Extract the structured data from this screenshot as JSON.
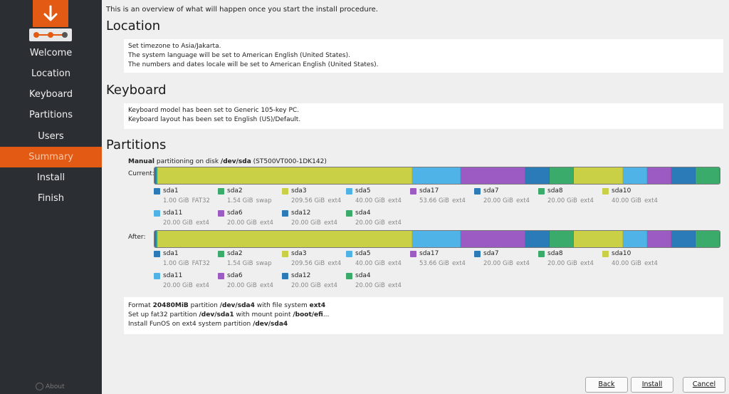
{
  "sidebar": {
    "logo_icon": "download-arrow-icon",
    "steps_icon": "progress-steps-icon",
    "accent": "#e35a14",
    "items": [
      {
        "label": "Welcome",
        "active": false
      },
      {
        "label": "Location",
        "active": false
      },
      {
        "label": "Keyboard",
        "active": false
      },
      {
        "label": "Partitions",
        "active": false
      },
      {
        "label": "Users",
        "active": false
      },
      {
        "label": "Summary",
        "active": true
      },
      {
        "label": "Install",
        "active": false
      },
      {
        "label": "Finish",
        "active": false
      }
    ],
    "about_label": "About"
  },
  "main": {
    "intro": "This is an overview of what will happen once you start the install procedure.",
    "location": {
      "heading": "Location",
      "lines": [
        "Set timezone to Asia/Jakarta.",
        "The system language will be set to American English (United States).",
        "The numbers and dates locale will be set to American English (United States)."
      ]
    },
    "keyboard": {
      "heading": "Keyboard",
      "lines": [
        "Keyboard model has been set to Generic 105-key PC.",
        "Keyboard layout has been set to English (US)/Default."
      ]
    },
    "partitions": {
      "heading": "Partitions",
      "disk_prefix": "Manual",
      "disk_mid": " partitioning on disk ",
      "disk_name": "/dev/sda",
      "disk_model": " (ST500VT000-1DK142)",
      "current_label": "Current:",
      "after_label": "After:",
      "partitions": [
        {
          "name": "sda1",
          "size": "1.00 GiB",
          "fs": "FAT32",
          "color": "#2b7bb9",
          "gib": 1
        },
        {
          "name": "sda2",
          "size": "1.54 GiB",
          "fs": "swap",
          "color": "#3aab6a",
          "gib": 1.54
        },
        {
          "name": "sda3",
          "size": "209.56 GiB",
          "fs": "ext4",
          "color": "#c9d046",
          "gib": 209.56
        },
        {
          "name": "sda5",
          "size": "40.00 GiB",
          "fs": "ext4",
          "color": "#4fb3e8",
          "gib": 40
        },
        {
          "name": "sda17",
          "size": "53.66 GiB",
          "fs": "ext4",
          "color": "#9b5bc2",
          "gib": 53.66
        },
        {
          "name": "sda7",
          "size": "20.00 GiB",
          "fs": "ext4",
          "color": "#2b7bb9",
          "gib": 20
        },
        {
          "name": "sda8",
          "size": "20.00 GiB",
          "fs": "ext4",
          "color": "#3aab6a",
          "gib": 20
        },
        {
          "name": "sda10",
          "size": "40.00 GiB",
          "fs": "ext4",
          "color": "#c9d046",
          "gib": 40
        },
        {
          "name": "sda11",
          "size": "20.00 GiB",
          "fs": "ext4",
          "color": "#4fb3e8",
          "gib": 20
        },
        {
          "name": "sda6",
          "size": "20.00 GiB",
          "fs": "ext4",
          "color": "#9b5bc2",
          "gib": 20
        },
        {
          "name": "sda12",
          "size": "20.00 GiB",
          "fs": "ext4",
          "color": "#2b7bb9",
          "gib": 20
        },
        {
          "name": "sda4",
          "size": "20.00 GiB",
          "fs": "ext4",
          "color": "#3aab6a",
          "gib": 20
        }
      ],
      "operations": [
        {
          "parts": [
            {
              "t": "Format "
            },
            {
              "t": "20480MiB",
              "b": true
            },
            {
              "t": " partition "
            },
            {
              "t": "/dev/sda4",
              "b": true
            },
            {
              "t": " with file system "
            },
            {
              "t": "ext4",
              "b": true
            }
          ]
        },
        {
          "parts": [
            {
              "t": "Set up fat32 partition "
            },
            {
              "t": "/dev/sda1",
              "b": true
            },
            {
              "t": " with mount point "
            },
            {
              "t": "/boot/efi",
              "b": true
            },
            {
              "t": "..."
            }
          ]
        },
        {
          "parts": [
            {
              "t": "Install FunOS on ext4 system partition "
            },
            {
              "t": "/dev/sda4",
              "b": true
            }
          ]
        }
      ]
    }
  },
  "buttons": {
    "back": "Back",
    "install": "Install",
    "cancel": "Cancel"
  }
}
